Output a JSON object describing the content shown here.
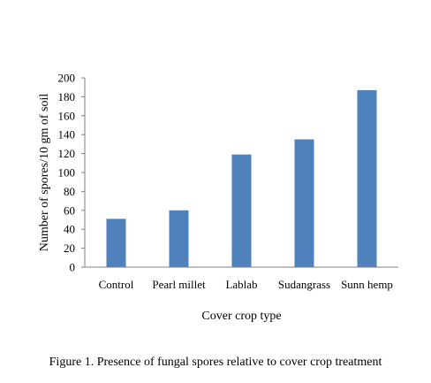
{
  "figure": {
    "caption": "Figure 1.  Presence of fungal spores relative to cover crop treatment"
  },
  "chart_data": {
    "type": "bar",
    "categories": [
      "Control",
      "Pearl millet",
      "Lablab",
      "Sudangrass",
      "Sunn hemp"
    ],
    "values": [
      51,
      60,
      119,
      135,
      187
    ],
    "title": "",
    "xlabel": "Cover crop type",
    "ylabel": "Number of spores/10 gm of soil",
    "ylim": [
      0,
      200
    ],
    "yticks": [
      0,
      20,
      40,
      60,
      80,
      100,
      120,
      140,
      160,
      180,
      200
    ],
    "bar_color": "#4f81bd",
    "grid": false,
    "legend": "none"
  }
}
